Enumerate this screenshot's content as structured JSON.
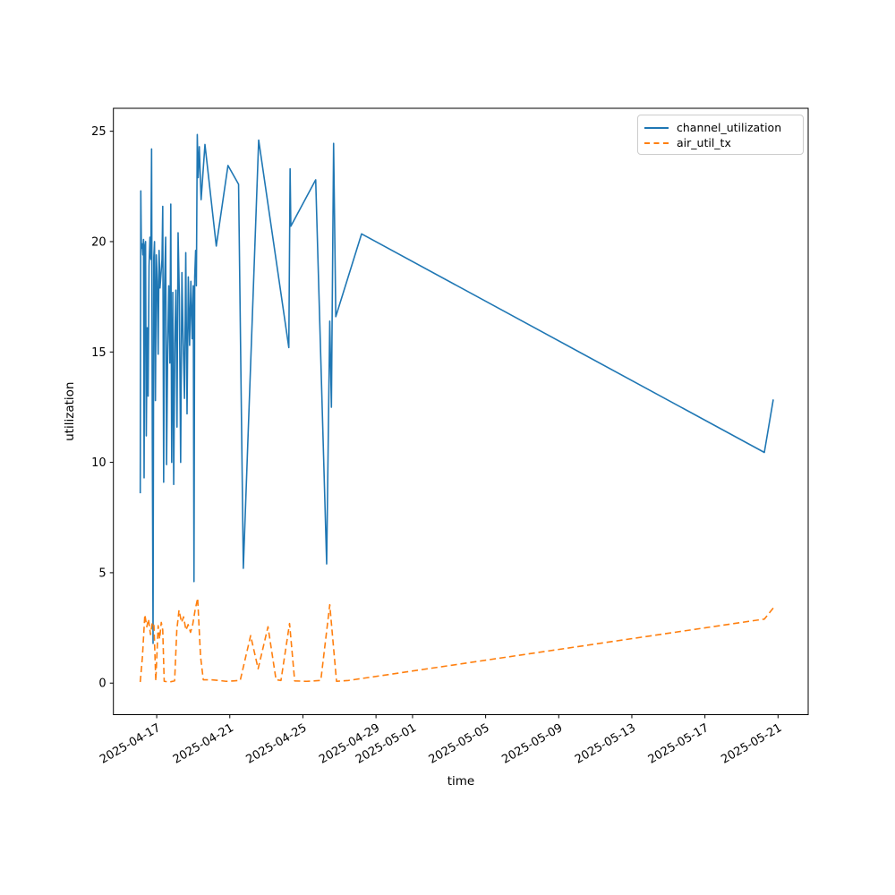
{
  "chart_data": {
    "type": "line",
    "title": "",
    "xlabel": "time",
    "ylabel": "utilization",
    "x_axis_note": "t = days since 2025-04-16 00:00",
    "x_range_days": [
      -1.37,
      36.65
    ],
    "ylim": [
      -1.43,
      26.04
    ],
    "grid": false,
    "y_ticks": [
      0,
      5,
      10,
      15,
      20,
      25
    ],
    "x_ticks": [
      {
        "t": 1,
        "label": "2025-04-17"
      },
      {
        "t": 5,
        "label": "2025-04-21"
      },
      {
        "t": 9,
        "label": "2025-04-25"
      },
      {
        "t": 13,
        "label": "2025-04-29"
      },
      {
        "t": 15,
        "label": "2025-05-01"
      },
      {
        "t": 19,
        "label": "2025-05-05"
      },
      {
        "t": 23,
        "label": "2025-05-09"
      },
      {
        "t": 27,
        "label": "2025-05-13"
      },
      {
        "t": 31,
        "label": "2025-05-17"
      },
      {
        "t": 35,
        "label": "2025-05-21"
      }
    ],
    "legend": {
      "position": "upper right"
    },
    "series": [
      {
        "name": "channel_utilization",
        "color": "#1f77b4",
        "style": "solid",
        "points": [
          [
            0.1,
            8.6
          ],
          [
            0.13,
            22.3
          ],
          [
            0.16,
            19.7
          ],
          [
            0.2,
            19.9
          ],
          [
            0.24,
            19.4
          ],
          [
            0.28,
            20.1
          ],
          [
            0.31,
            9.3
          ],
          [
            0.35,
            19.8
          ],
          [
            0.39,
            20.0
          ],
          [
            0.43,
            11.2
          ],
          [
            0.48,
            16.1
          ],
          [
            0.53,
            13.0
          ],
          [
            0.58,
            18.9
          ],
          [
            0.63,
            20.2
          ],
          [
            0.68,
            19.2
          ],
          [
            0.72,
            24.2
          ],
          [
            0.76,
            11.1
          ],
          [
            0.8,
            1.8
          ],
          [
            0.84,
            19.3
          ],
          [
            0.88,
            20.0
          ],
          [
            0.93,
            12.8
          ],
          [
            0.98,
            19.4
          ],
          [
            1.03,
            18.2
          ],
          [
            1.08,
            14.9
          ],
          [
            1.13,
            19.6
          ],
          [
            1.18,
            17.9
          ],
          [
            1.24,
            18.6
          ],
          [
            1.29,
            19.2
          ],
          [
            1.33,
            21.6
          ],
          [
            1.38,
            9.1
          ],
          [
            1.43,
            18.0
          ],
          [
            1.49,
            20.2
          ],
          [
            1.54,
            9.9
          ],
          [
            1.6,
            15.1
          ],
          [
            1.66,
            18.0
          ],
          [
            1.72,
            14.5
          ],
          [
            1.77,
            21.7
          ],
          [
            1.82,
            10.0
          ],
          [
            1.88,
            17.7
          ],
          [
            1.93,
            9.0
          ],
          [
            1.99,
            15.4
          ],
          [
            2.05,
            17.8
          ],
          [
            2.11,
            11.6
          ],
          [
            2.17,
            20.4
          ],
          [
            2.24,
            17.5
          ],
          [
            2.31,
            10.0
          ],
          [
            2.38,
            18.6
          ],
          [
            2.45,
            15.4
          ],
          [
            2.52,
            12.9
          ],
          [
            2.59,
            19.5
          ],
          [
            2.66,
            12.2
          ],
          [
            2.73,
            18.4
          ],
          [
            2.8,
            15.3
          ],
          [
            2.87,
            18.2
          ],
          [
            2.94,
            15.6
          ],
          [
            3.0,
            18.0
          ],
          [
            3.04,
            4.6
          ],
          [
            3.08,
            18.4
          ],
          [
            3.13,
            19.6
          ],
          [
            3.17,
            18.0
          ],
          [
            3.22,
            24.85
          ],
          [
            3.27,
            22.9
          ],
          [
            3.33,
            24.3
          ],
          [
            3.43,
            21.9
          ],
          [
            3.64,
            24.4
          ],
          [
            4.26,
            19.8
          ],
          [
            4.9,
            23.45
          ],
          [
            5.48,
            22.6
          ],
          [
            5.74,
            5.2
          ],
          [
            6.58,
            24.6
          ],
          [
            8.23,
            15.2
          ],
          [
            8.3,
            23.3
          ],
          [
            8.34,
            20.7
          ],
          [
            9.7,
            22.8
          ],
          [
            10.3,
            5.4
          ],
          [
            10.47,
            16.4
          ],
          [
            10.56,
            12.5
          ],
          [
            10.68,
            24.45
          ],
          [
            10.8,
            16.6
          ],
          [
            12.21,
            20.35
          ],
          [
            34.25,
            10.45
          ],
          [
            34.74,
            12.85
          ]
        ]
      },
      {
        "name": "air_util_tx",
        "color": "#ff7f0e",
        "style": "dashed",
        "points": [
          [
            0.1,
            0.05
          ],
          [
            0.22,
            1.2
          ],
          [
            0.35,
            3.1
          ],
          [
            0.46,
            2.55
          ],
          [
            0.55,
            2.9
          ],
          [
            0.66,
            2.2
          ],
          [
            0.76,
            2.75
          ],
          [
            0.85,
            2.6
          ],
          [
            0.95,
            0.1
          ],
          [
            1.08,
            2.6
          ],
          [
            1.16,
            2.0
          ],
          [
            1.25,
            2.75
          ],
          [
            1.33,
            2.4
          ],
          [
            1.41,
            0.08
          ],
          [
            1.7,
            0.05
          ],
          [
            1.98,
            0.1
          ],
          [
            2.1,
            2.4
          ],
          [
            2.22,
            3.3
          ],
          [
            2.36,
            2.75
          ],
          [
            2.47,
            3.0
          ],
          [
            2.6,
            2.4
          ],
          [
            2.72,
            2.65
          ],
          [
            2.85,
            2.3
          ],
          [
            2.96,
            2.6
          ],
          [
            3.1,
            3.3
          ],
          [
            3.24,
            3.85
          ],
          [
            3.4,
            1.2
          ],
          [
            3.55,
            0.15
          ],
          [
            4.0,
            0.15
          ],
          [
            4.4,
            0.12
          ],
          [
            4.8,
            0.08
          ],
          [
            5.2,
            0.1
          ],
          [
            5.57,
            0.12
          ],
          [
            6.14,
            2.15
          ],
          [
            6.55,
            0.65
          ],
          [
            7.09,
            2.55
          ],
          [
            7.53,
            0.15
          ],
          [
            7.8,
            0.12
          ],
          [
            8.27,
            2.7
          ],
          [
            8.55,
            0.1
          ],
          [
            9.2,
            0.08
          ],
          [
            9.98,
            0.12
          ],
          [
            10.47,
            3.55
          ],
          [
            10.84,
            0.08
          ],
          [
            11.5,
            0.12
          ],
          [
            34.25,
            2.9
          ],
          [
            34.74,
            3.4
          ]
        ]
      }
    ]
  }
}
